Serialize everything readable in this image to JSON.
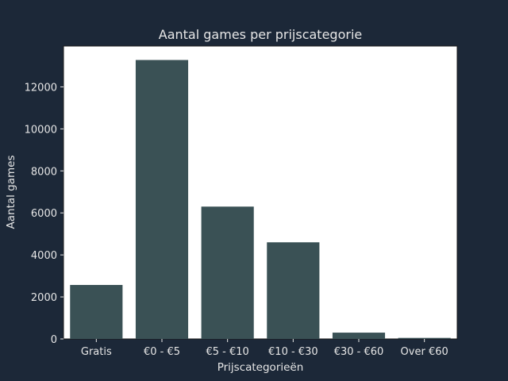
{
  "chart_data": {
    "type": "bar",
    "title": "Aantal games per prijscategorie",
    "xlabel": "Prijscategorieën",
    "ylabel": "Aantal games",
    "categories": [
      "Gratis",
      "€0 - €5",
      "€5 - €10",
      "€10 - €30",
      "€30 - €60",
      "Over €60"
    ],
    "values": [
      2570,
      13280,
      6300,
      4600,
      300,
      50
    ],
    "ylim": [
      0,
      13944
    ],
    "yticks": [
      0,
      2000,
      4000,
      6000,
      8000,
      10000,
      12000
    ],
    "grid": false,
    "colors": {
      "background": "#1c2838",
      "plot_background": "#ffffff",
      "bar": "#3a5155",
      "text": "#e6e6e6",
      "axis": "#1a1a1a"
    }
  }
}
